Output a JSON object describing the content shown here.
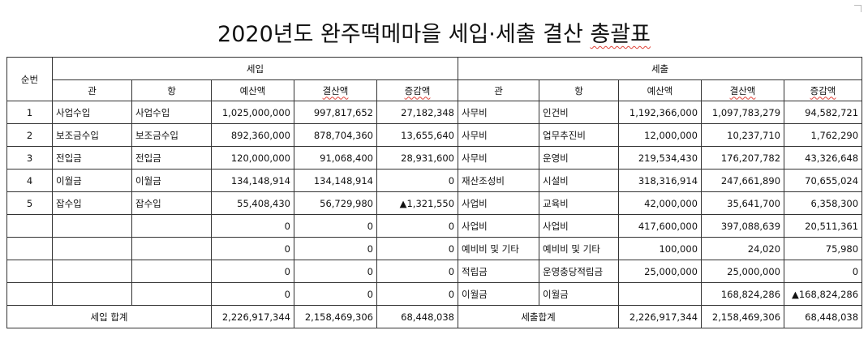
{
  "title_prefix": "2020년도 완주떡메마을 세입·세출 결산 ",
  "title_suffix": "총괄표",
  "header": {
    "order": "순번",
    "income": "세입",
    "expense": "세출",
    "gwan": "관",
    "hang": "항",
    "budget": "예산액",
    "settled": "결산액",
    "diff": "증감액"
  },
  "rows": [
    {
      "no": "1",
      "in_gwan": "사업수입",
      "in_hang": "사업수입",
      "in_budget": "1,025,000,000",
      "in_settled": "997,817,652",
      "in_diff": "27,182,348",
      "ex_gwan": "사무비",
      "ex_hang": "인건비",
      "ex_budget": "1,192,366,000",
      "ex_settled": "1,097,783,279",
      "ex_diff": "94,582,721"
    },
    {
      "no": "2",
      "in_gwan": "보조금수입",
      "in_hang": "보조금수입",
      "in_budget": "892,360,000",
      "in_settled": "878,704,360",
      "in_diff": "13,655,640",
      "ex_gwan": "사무비",
      "ex_hang": "업무추진비",
      "ex_budget": "12,000,000",
      "ex_settled": "10,237,710",
      "ex_diff": "1,762,290"
    },
    {
      "no": "3",
      "in_gwan": "전입금",
      "in_hang": "전입금",
      "in_budget": "120,000,000",
      "in_settled": "91,068,400",
      "in_diff": "28,931,600",
      "ex_gwan": "사무비",
      "ex_hang": "운영비",
      "ex_budget": "219,534,430",
      "ex_settled": "176,207,782",
      "ex_diff": "43,326,648"
    },
    {
      "no": "4",
      "in_gwan": "이월금",
      "in_hang": "이월금",
      "in_budget": "134,148,914",
      "in_settled": "134,148,914",
      "in_diff": "0",
      "ex_gwan": "재산조성비",
      "ex_hang": "시설비",
      "ex_budget": "318,316,914",
      "ex_settled": "247,661,890",
      "ex_diff": "70,655,024"
    },
    {
      "no": "5",
      "in_gwan": "잡수입",
      "in_hang": "잡수입",
      "in_budget": "55,408,430",
      "in_settled": "56,729,980",
      "in_diff": "▲1,321,550",
      "ex_gwan": "사업비",
      "ex_hang": "교육비",
      "ex_budget": "42,000,000",
      "ex_settled": "35,641,700",
      "ex_diff": "6,358,300"
    },
    {
      "no": "",
      "in_gwan": "",
      "in_hang": "",
      "in_budget": "0",
      "in_settled": "0",
      "in_diff": "0",
      "ex_gwan": "사업비",
      "ex_hang": "사업비",
      "ex_budget": "417,600,000",
      "ex_settled": "397,088,639",
      "ex_diff": "20,511,361"
    },
    {
      "no": "",
      "in_gwan": "",
      "in_hang": "",
      "in_budget": "0",
      "in_settled": "0",
      "in_diff": "0",
      "ex_gwan": "예비비 및 기타",
      "ex_hang": "예비비 및 기타",
      "ex_budget": "100,000",
      "ex_settled": "24,020",
      "ex_diff": "75,980"
    },
    {
      "no": "",
      "in_gwan": "",
      "in_hang": "",
      "in_budget": "0",
      "in_settled": "0",
      "in_diff": "0",
      "ex_gwan": "적립금",
      "ex_hang": "운영충당적립금",
      "ex_budget": "25,000,000",
      "ex_settled": "25,000,000",
      "ex_diff": "0"
    },
    {
      "no": "",
      "in_gwan": "",
      "in_hang": "",
      "in_budget": "0",
      "in_settled": "0",
      "in_diff": "0",
      "ex_gwan": "이월금",
      "ex_hang": "이월금",
      "ex_budget": "",
      "ex_settled": "168,824,286",
      "ex_diff": "▲168,824,286"
    }
  ],
  "totals": {
    "in_label": "세입 합계",
    "in_budget": "2,226,917,344",
    "in_settled": "2,158,469,306",
    "in_diff": "68,448,038",
    "ex_label": "세출합계",
    "ex_budget": "2,226,917,344",
    "ex_settled": "2,158,469,306",
    "ex_diff": "68,448,038"
  }
}
